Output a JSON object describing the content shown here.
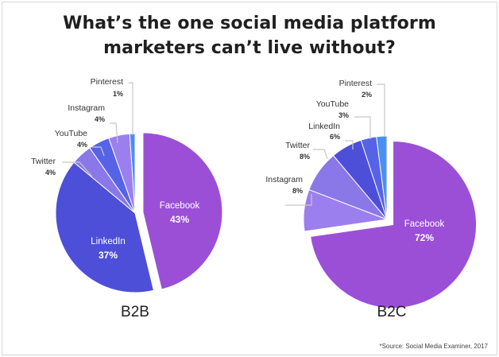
{
  "title_line1": "What’s the one social media platform",
  "title_line2": "marketers can’t live without?",
  "source": "*Source: Social Media Examiner, 2017",
  "colors": {
    "Facebook": "#9b4fd6",
    "LinkedIn": "#4d4fd8",
    "Twitter": "#8a78e8",
    "YouTube": "#5763e6",
    "Instagram": "#9c7fef",
    "Pinterest": "#4b8ff0"
  },
  "chart_data": [
    {
      "type": "pie",
      "title": "B2B",
      "slices": [
        {
          "name": "Facebook",
          "value": 43,
          "label": "43%"
        },
        {
          "name": "LinkedIn",
          "value": 37,
          "label": "37%"
        },
        {
          "name": "Twitter",
          "value": 4,
          "label": "4%"
        },
        {
          "name": "YouTube",
          "value": 4,
          "label": "4%"
        },
        {
          "name": "Instagram",
          "value": 4,
          "label": "4%"
        },
        {
          "name": "Pinterest",
          "value": 1,
          "label": "1%"
        }
      ]
    },
    {
      "type": "pie",
      "title": "B2C",
      "slices": [
        {
          "name": "Facebook",
          "value": 72,
          "label": "72%"
        },
        {
          "name": "Instagram",
          "value": 8,
          "label": "8%"
        },
        {
          "name": "Twitter",
          "value": 8,
          "label": "8%"
        },
        {
          "name": "LinkedIn",
          "value": 6,
          "label": "6%"
        },
        {
          "name": "YouTube",
          "value": 3,
          "label": "3%"
        },
        {
          "name": "Pinterest",
          "value": 2,
          "label": "2%"
        }
      ]
    }
  ]
}
